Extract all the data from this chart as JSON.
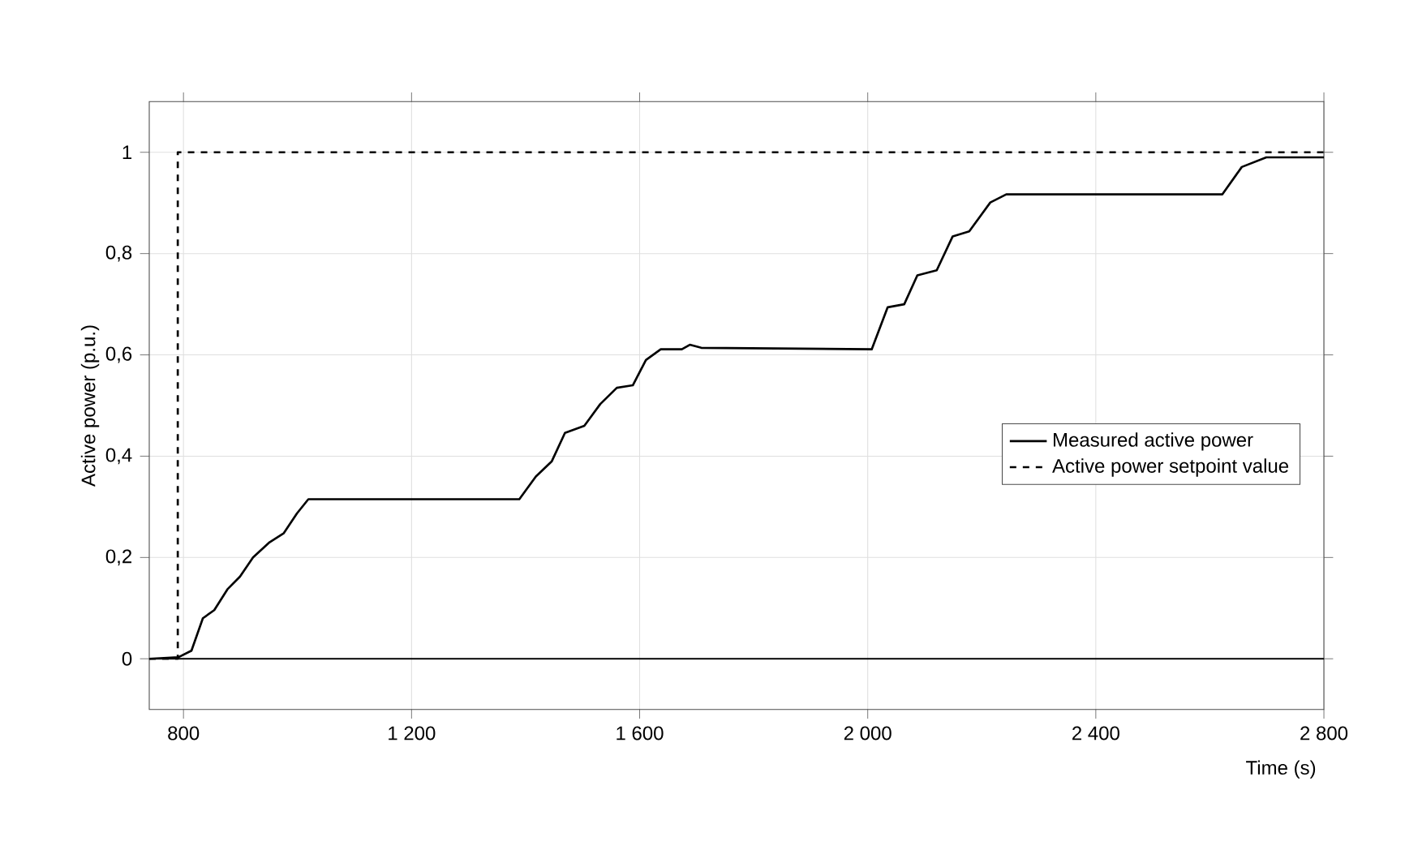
{
  "chart_data": {
    "type": "line",
    "xlabel": "Time  (s)",
    "ylabel": "Active power  (p.u.)",
    "xlim": [
      740,
      2800
    ],
    "ylim": [
      -0.1,
      1.1
    ],
    "xticks": [
      {
        "value": 800,
        "label": "800"
      },
      {
        "value": 1200,
        "label": "1 200"
      },
      {
        "value": 1600,
        "label": "1 600"
      },
      {
        "value": 2000,
        "label": "2 000"
      },
      {
        "value": 2400,
        "label": "2 400"
      },
      {
        "value": 2800,
        "label": "2 800"
      }
    ],
    "yticks": [
      0,
      {
        "value": 0.2,
        "label": "0,2"
      },
      {
        "value": 0.4,
        "label": "0,4"
      },
      {
        "value": 0.6,
        "label": "0,6"
      },
      {
        "value": 0.8,
        "label": "0,8"
      },
      1
    ],
    "grid": true,
    "legend": "right",
    "series": [
      {
        "name": "Measured active power",
        "color": "#000000",
        "line_style": "solid",
        "x": [
          740,
          791,
          814,
          834,
          854,
          877,
          899,
          922,
          951,
          976,
          999,
          1019,
          1389,
          1418,
          1446,
          1469,
          1503,
          1531,
          1560,
          1588,
          1611,
          1637,
          1674,
          1688,
          1708,
          2007,
          2035,
          2064,
          2087,
          2121,
          2149,
          2178,
          2215,
          2243,
          2622,
          2656,
          2699,
          2800
        ],
        "values": [
          0,
          0.003,
          0.016,
          0.08,
          0.096,
          0.137,
          0.162,
          0.2,
          0.23,
          0.248,
          0.287,
          0.315,
          0.315,
          0.36,
          0.39,
          0.446,
          0.46,
          0.503,
          0.535,
          0.54,
          0.59,
          0.611,
          0.611,
          0.62,
          0.614,
          0.611,
          0.694,
          0.7,
          0.757,
          0.767,
          0.834,
          0.844,
          0.901,
          0.917,
          0.917,
          0.971,
          0.99,
          0.99
        ]
      },
      {
        "name": "Active power setpoint value",
        "color": "#000000",
        "line_style": "dashed",
        "x": [
          740,
          790,
          790,
          2800
        ],
        "values": [
          0,
          0,
          1,
          1
        ]
      }
    ]
  }
}
